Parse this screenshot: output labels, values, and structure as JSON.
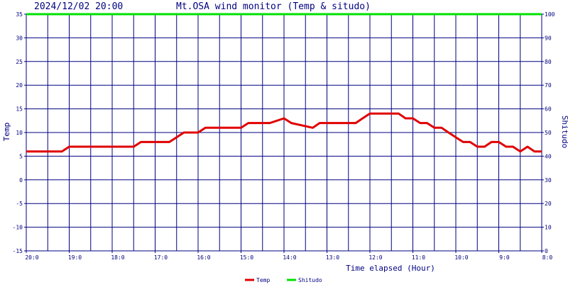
{
  "header": {
    "timestamp": "2024/12/02 20:00",
    "title": "Mt.OSA wind monitor (Temp & situdo)"
  },
  "chart_data": {
    "type": "line",
    "title": "Mt.OSA wind monitor (Temp & situdo)",
    "xlabel": "Time elapsed (Hour)",
    "ylabel": "Temp",
    "y2label": "Shitudo",
    "ylim": [
      -15,
      35
    ],
    "y2lim": [
      0,
      100
    ],
    "xlim": [
      0,
      12
    ],
    "x_ticks": [
      "20:0",
      "19:0",
      "18:0",
      "17:0",
      "16:0",
      "15:0",
      "14:0",
      "13:0",
      "12:0",
      "11:0",
      "10:0",
      "9:0",
      "8:0"
    ],
    "y_ticks": [
      "35",
      "30",
      "25",
      "20",
      "15",
      "10",
      "5",
      "0",
      "-5",
      "-10",
      "-15"
    ],
    "y2_ticks": [
      "100",
      "90",
      "80",
      "70",
      "60",
      "50",
      "40",
      "30",
      "20",
      "10",
      "0"
    ],
    "grid": true,
    "legend_position": "bottom",
    "series": [
      {
        "name": "Temp",
        "axis": "left",
        "color": "#e00000",
        "x": [
          0,
          0.83,
          1.0,
          1.17,
          2.33,
          2.5,
          2.67,
          3.0,
          3.33,
          3.5,
          3.67,
          3.83,
          4.0,
          4.17,
          4.67,
          4.83,
          5.0,
          5.17,
          5.5,
          5.67,
          6.0,
          6.17,
          6.67,
          6.83,
          7.0,
          7.33,
          7.67,
          7.83,
          8.0,
          8.17,
          8.5,
          8.67,
          8.83,
          9.0,
          9.17,
          9.33,
          9.5,
          9.67,
          9.83,
          10.0,
          10.17,
          10.33,
          10.5,
          10.67,
          10.83,
          11.0,
          11.17,
          11.33,
          11.5,
          11.67,
          11.83,
          12.0
        ],
        "values": [
          6,
          6,
          7,
          7,
          7,
          7,
          8,
          8,
          8,
          9,
          10,
          10,
          10,
          11,
          11,
          11,
          11,
          12,
          12,
          12,
          13,
          12,
          11,
          12,
          12,
          12,
          12,
          13,
          14,
          14,
          14,
          14,
          13,
          13,
          12,
          12,
          11,
          11,
          10,
          9,
          8,
          8,
          7,
          7,
          8,
          8,
          7,
          7,
          6,
          7,
          6,
          6
        ]
      },
      {
        "name": "Shitudo",
        "axis": "right",
        "color": "#00e000",
        "x": [
          0,
          12
        ],
        "values": [
          100,
          100
        ]
      }
    ]
  },
  "colors": {
    "axis": "#000080",
    "grid": "#000080",
    "temp": "#e00000",
    "shitudo": "#00e000"
  }
}
